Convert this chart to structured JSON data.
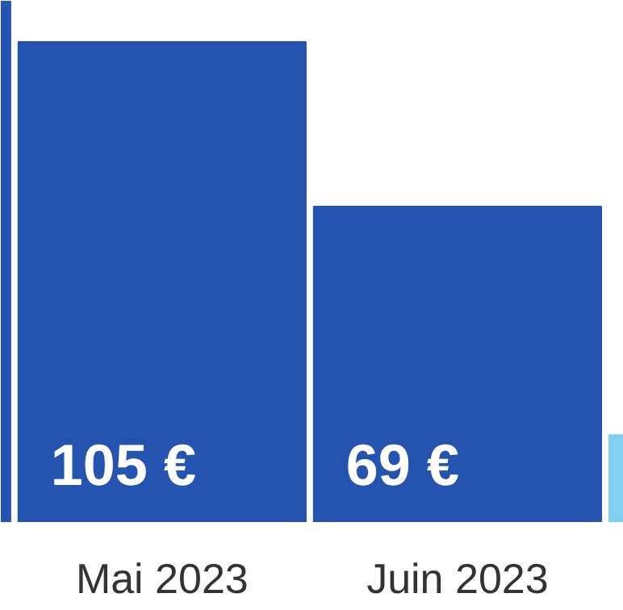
{
  "chart_data": {
    "type": "bar",
    "categories": [
      null,
      "Mai 2023",
      "Juin 2023",
      null
    ],
    "values": [
      114,
      105,
      69,
      19
    ],
    "colors": [
      "#2553b0",
      "#2553b0",
      "#2553b0",
      "#7fd0f0"
    ],
    "value_labels": [
      null,
      "105 €",
      "69 €",
      null
    ],
    "ylim": [
      0,
      114
    ],
    "grid": false
  }
}
